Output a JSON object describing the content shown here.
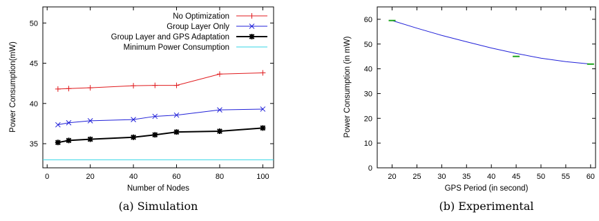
{
  "chart_data": [
    {
      "type": "line",
      "caption": "(a) Simulation",
      "xlabel": "Number of Nodes",
      "ylabel": "Power Consumption(mW)",
      "xlim": [
        -2,
        105
      ],
      "ylim": [
        32,
        52
      ],
      "xticks": [
        "0",
        "20",
        "40",
        "60",
        "80",
        "100"
      ],
      "yticks": [
        "35",
        "40",
        "45",
        "50"
      ],
      "legend_position": "top-right",
      "series": [
        {
          "name": "No Optimization",
          "color": "#e0191c",
          "marker": "plus",
          "x": [
            5,
            10,
            20,
            40,
            50,
            60,
            80,
            100
          ],
          "values": [
            41.8,
            41.85,
            41.95,
            42.2,
            42.25,
            42.25,
            43.65,
            43.8
          ]
        },
        {
          "name": "Group Layer Only",
          "color": "#1f1fd8",
          "marker": "cross",
          "x": [
            5,
            10,
            20,
            40,
            50,
            60,
            80,
            100
          ],
          "values": [
            37.35,
            37.6,
            37.85,
            38.0,
            38.4,
            38.55,
            39.2,
            39.3
          ]
        },
        {
          "name": "Group Layer and GPS Adaptation",
          "color": "#000000",
          "marker": "star",
          "x": [
            5,
            10,
            20,
            40,
            50,
            60,
            80,
            100
          ],
          "values": [
            35.15,
            35.4,
            35.55,
            35.8,
            36.1,
            36.45,
            36.55,
            36.95
          ]
        },
        {
          "name": "Minimum Power Consumption",
          "color": "#33d6e6",
          "marker": "none",
          "x": [
            -2,
            105
          ],
          "values": [
            33.0,
            33.0
          ]
        }
      ]
    },
    {
      "type": "line",
      "caption": "(b) Experimental",
      "xlabel": "GPS Period (in second)",
      "ylabel": "Power Consumption (in mW)",
      "xlim": [
        17,
        61
      ],
      "ylim": [
        0,
        65
      ],
      "xticks": [
        "20",
        "25",
        "30",
        "35",
        "40",
        "45",
        "50",
        "55",
        "60"
      ],
      "yticks": [
        "0",
        "10",
        "20",
        "30",
        "40",
        "50",
        "60"
      ],
      "series": [
        {
          "color": "#1f1fd8",
          "marker": "none",
          "x": [
            20,
            25,
            30,
            35,
            40,
            45,
            50,
            55,
            60
          ],
          "values": [
            59.5,
            56.4,
            53.5,
            50.9,
            48.4,
            46.2,
            44.3,
            42.9,
            41.9
          ]
        },
        {
          "color": "#1aa31a",
          "marker": "dash",
          "x": [
            20,
            45,
            60
          ],
          "values": [
            59.5,
            45.0,
            41.9
          ]
        }
      ]
    }
  ]
}
